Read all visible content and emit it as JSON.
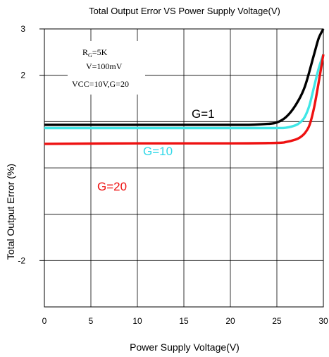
{
  "chart_data": {
    "type": "line",
    "title": "Total Output Error VS Power Supply Voltage(V)",
    "xlabel": "Power Supply Voltage(V)",
    "ylabel": "Total Output Error (%)",
    "xlim": [
      0,
      30
    ],
    "ylim": [
      -3,
      3
    ],
    "x_ticks": [
      "0",
      "5",
      "10",
      "15",
      "20",
      "25",
      "30"
    ],
    "y_tick_labels": [
      {
        "value": 3,
        "label": "3"
      },
      {
        "value": 2,
        "label": "2"
      },
      {
        "value": -2,
        "label": "-2"
      }
    ],
    "grid": true,
    "annotation": {
      "rg_main": "R",
      "rg_sub": "G",
      "rg_value": "=5K",
      "v_line": "V=100mV",
      "cond_line": "VCC=10V,G=20"
    },
    "series": [
      {
        "name": "G=1",
        "color": "#000000",
        "label_color": "#000000",
        "x": [
          0,
          10,
          20,
          22,
          24,
          25,
          26,
          27,
          28,
          29,
          29.5,
          30
        ],
        "y": [
          0.93,
          0.93,
          0.93,
          0.93,
          0.95,
          0.98,
          1.1,
          1.35,
          1.75,
          2.45,
          2.8,
          3.0
        ]
      },
      {
        "name": "G=10",
        "color": "#3FE6E6",
        "label_color": "#2FD8E8",
        "x": [
          0,
          10,
          20,
          25,
          26,
          27,
          27.5,
          28,
          28.5,
          29,
          29.5,
          30
        ],
        "y": [
          0.86,
          0.86,
          0.86,
          0.86,
          0.87,
          0.92,
          0.98,
          1.1,
          1.35,
          1.75,
          2.15,
          2.45
        ]
      },
      {
        "name": "G=20",
        "color": "#EE1111",
        "label_color": "#EE1111",
        "x": [
          0,
          10,
          20,
          25,
          26,
          27,
          27.5,
          28,
          28.5,
          29,
          29.5,
          30
        ],
        "y": [
          0.52,
          0.53,
          0.53,
          0.54,
          0.56,
          0.61,
          0.66,
          0.75,
          0.92,
          1.3,
          1.85,
          2.45
        ]
      }
    ]
  }
}
